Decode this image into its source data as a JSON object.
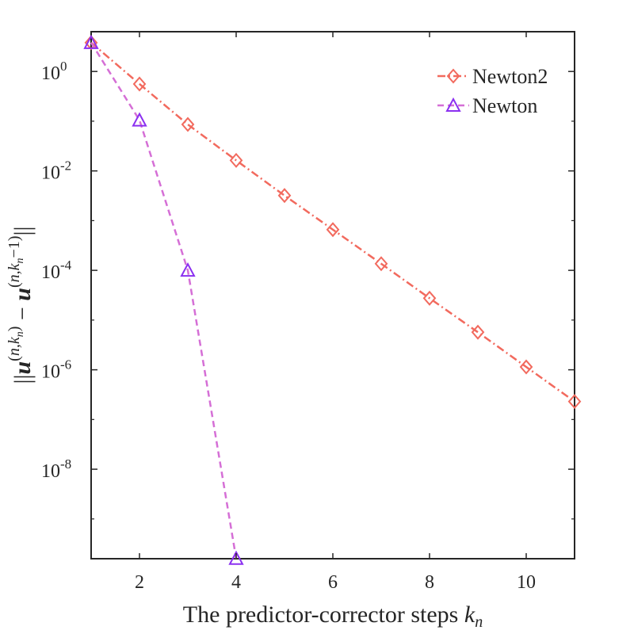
{
  "chart_data": {
    "type": "line",
    "xlabel_text": "The predictor-corrector steps",
    "xlabel_symbol": "k",
    "xlabel_subscript": "n",
    "ylabel": "||u^(n,k_n) − u^(n,k_n−1)||",
    "xlim": [
      1,
      11
    ],
    "ylim_log10": [
      -9.8,
      0.8
    ],
    "yscale": "log",
    "x_ticks": [
      2,
      4,
      6,
      8,
      10
    ],
    "y_ticks": [
      {
        "exp": 0,
        "base": "10",
        "label": "0"
      },
      {
        "exp": -2,
        "base": "10",
        "label": "-2"
      },
      {
        "exp": -4,
        "base": "10",
        "label": "-4"
      },
      {
        "exp": -6,
        "base": "10",
        "label": "-6"
      },
      {
        "exp": -8,
        "base": "10",
        "label": "-8"
      }
    ],
    "legend_position": "top-right",
    "series": [
      {
        "name": "Newton2",
        "color": "#f26a5e",
        "marker": "diamond",
        "line_style": "dash-dot",
        "x": [
          1,
          2,
          3,
          4,
          5,
          6,
          7,
          8,
          9,
          10,
          11
        ],
        "y": [
          3.8,
          0.56,
          0.086,
          0.0163,
          0.0032,
          0.00066,
          0.000136,
          2.75e-05,
          5.7e-06,
          1.14e-06,
          2.3e-07
        ]
      },
      {
        "name": "Newton",
        "color": "#d56fd6",
        "marker_color": "#8b30f0",
        "marker": "triangle",
        "line_style": "dashed",
        "x": [
          1,
          2,
          3,
          4
        ],
        "y": [
          3.8,
          0.105,
          0.0001,
          1.6e-10
        ]
      }
    ]
  }
}
